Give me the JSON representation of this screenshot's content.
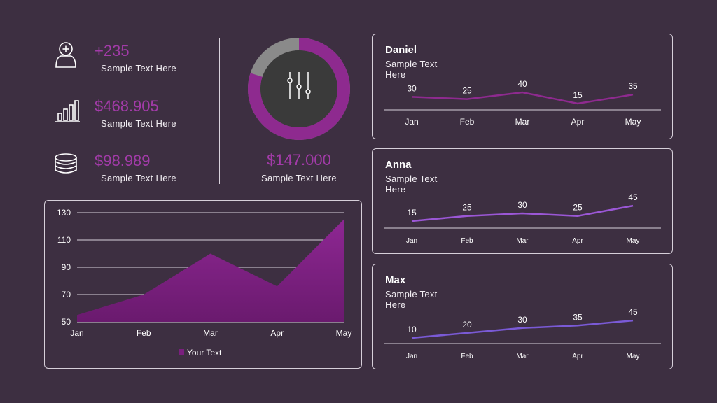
{
  "kpis": [
    {
      "icon": "user-add-icon",
      "value": "+235",
      "label": "Sample Text Here"
    },
    {
      "icon": "bar-chart-icon",
      "value": "$468.905",
      "label": "Sample Text Here"
    },
    {
      "icon": "coins-stack-icon",
      "value": "$98.989",
      "label": "Sample Text Here"
    }
  ],
  "center": {
    "icon": "sliders-icon",
    "value": "$147.000",
    "label": "Sample Text Here",
    "ring_fraction": 0.8,
    "colors": {
      "ring": "#8e2a8f",
      "ring_remainder": "#8a8a8a",
      "inner": "#3a3a3a"
    }
  },
  "colors": {
    "accent": "#a23ba8",
    "area": "#7a1f7e",
    "background": "#3d2f41"
  },
  "chart_data": [
    {
      "id": "area",
      "type": "area",
      "categories": [
        "Jan",
        "Feb",
        "Mar",
        "Apr",
        "May"
      ],
      "ylim": [
        50,
        130
      ],
      "yticks": [
        50,
        70,
        90,
        110,
        130
      ],
      "grid": true,
      "legend": "bottom",
      "series": [
        {
          "name": "Your Text",
          "values": [
            55,
            70,
            100,
            76,
            125
          ],
          "color": "#7a1f7e"
        }
      ]
    },
    {
      "id": "daniel",
      "type": "line",
      "title": "Daniel",
      "subtitle": "Sample Text Here",
      "categories": [
        "Jan",
        "Feb",
        "Mar",
        "Apr",
        "May"
      ],
      "series": [
        {
          "values": [
            30,
            25,
            40,
            15,
            35
          ],
          "color": "#8e2a8f"
        }
      ]
    },
    {
      "id": "anna",
      "type": "line",
      "title": "Anna",
      "subtitle": "Sample Text Here",
      "categories": [
        "Jan",
        "Feb",
        "Mar",
        "Apr",
        "May"
      ],
      "series": [
        {
          "values": [
            15,
            25,
            30,
            25,
            45
          ],
          "color": "#9b57d6"
        }
      ]
    },
    {
      "id": "max",
      "type": "line",
      "title": "Max",
      "subtitle": "Sample Text Here",
      "categories": [
        "Jan",
        "Feb",
        "Mar",
        "Apr",
        "May"
      ],
      "series": [
        {
          "values": [
            10,
            20,
            30,
            35,
            45
          ],
          "color": "#7a5ad6"
        }
      ]
    }
  ]
}
